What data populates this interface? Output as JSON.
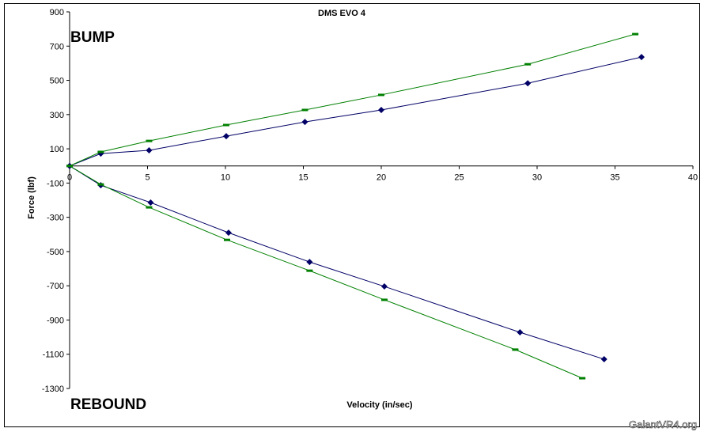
{
  "chart_data": {
    "type": "line",
    "title": "DMS EVO 4",
    "xlabel": "Velocity (in/sec)",
    "ylabel": "Force (lbf)",
    "xlim": [
      0,
      40
    ],
    "ylim": [
      -1300,
      900
    ],
    "xticks": [
      0,
      5,
      10,
      15,
      20,
      25,
      30,
      35,
      40
    ],
    "yticks": [
      900,
      700,
      500,
      300,
      100,
      -100,
      -300,
      -500,
      -700,
      -900,
      -1100,
      -1300
    ],
    "grid": false,
    "annotations": {
      "bump": "BUMP",
      "rebound": "REBOUND",
      "watermark": "GalantVR4.org"
    },
    "series": [
      {
        "name": "Blue bump",
        "color": "#000066",
        "marker": "diamond",
        "points": [
          [
            0,
            0
          ],
          [
            2,
            72
          ],
          [
            5.1,
            91
          ],
          [
            10.05,
            174
          ],
          [
            15.1,
            257
          ],
          [
            20,
            327
          ],
          [
            29.4,
            483
          ],
          [
            36.7,
            636
          ]
        ]
      },
      {
        "name": "Green bump",
        "color": "#008000",
        "marker": "dash",
        "points": [
          [
            0,
            0
          ],
          [
            2,
            82
          ],
          [
            5.1,
            146
          ],
          [
            10.05,
            239
          ],
          [
            15.1,
            327
          ],
          [
            20,
            415
          ],
          [
            29.4,
            594
          ],
          [
            36.3,
            770
          ]
        ]
      },
      {
        "name": "Blue rebound",
        "color": "#000066",
        "marker": "diamond",
        "points": [
          [
            0,
            0
          ],
          [
            2,
            -113
          ],
          [
            5.2,
            -214
          ],
          [
            10.2,
            -390
          ],
          [
            15.4,
            -561
          ],
          [
            20.2,
            -704
          ],
          [
            28.9,
            -972
          ],
          [
            34.3,
            -1129
          ]
        ]
      },
      {
        "name": "Green rebound",
        "color": "#008000",
        "marker": "dash",
        "points": [
          [
            0,
            0
          ],
          [
            2,
            -108
          ],
          [
            5.1,
            -242
          ],
          [
            10.1,
            -432
          ],
          [
            15.4,
            -612
          ],
          [
            20.2,
            -782
          ],
          [
            28.6,
            -1073
          ],
          [
            32.9,
            -1240
          ]
        ]
      }
    ]
  }
}
